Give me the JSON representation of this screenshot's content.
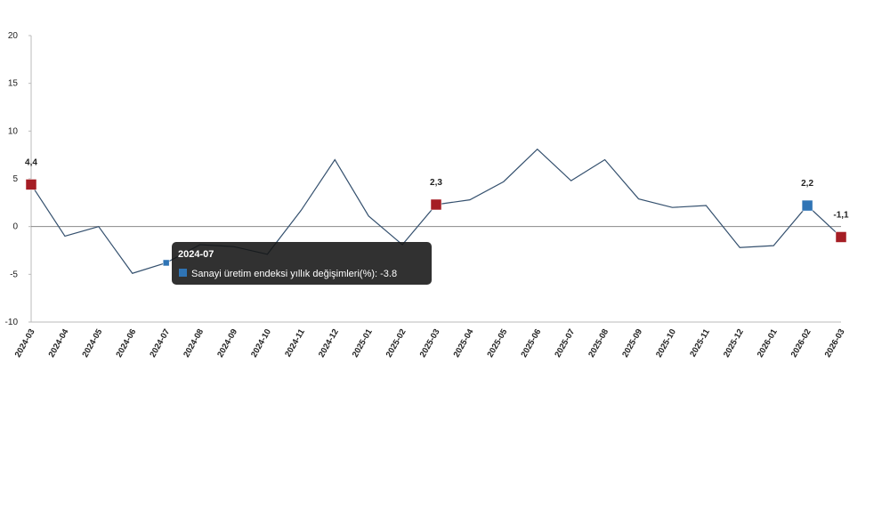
{
  "chart_data": {
    "type": "line",
    "categories": [
      "2024-03",
      "2024-04",
      "2024-05",
      "2024-06",
      "2024-07",
      "2024-08",
      "2024-09",
      "2024-10",
      "2024-11",
      "2024-12",
      "2025-01",
      "2025-02",
      "2025-03",
      "2025-04",
      "2025-05",
      "2025-06",
      "2025-07",
      "2025-08",
      "2025-09",
      "2025-10",
      "2025-11",
      "2025-12",
      "2026-01",
      "2026-02",
      "2026-03"
    ],
    "series": [
      {
        "name": "Sanayi üretim endeksi yıllık değişimleri(%)",
        "color": "#34506e",
        "values": [
          4.4,
          -1.0,
          0,
          -4.9,
          -3.8,
          -1.9,
          -2.1,
          -2.9,
          1.7,
          7.0,
          1.1,
          -1.9,
          2.3,
          2.8,
          4.7,
          8.1,
          4.8,
          7.0,
          2.9,
          2.0,
          2.2,
          -2.2,
          -2.0,
          2.2,
          -1.1
        ],
        "value_labels": [
          "4,4",
          null,
          null,
          null,
          null,
          null,
          null,
          null,
          null,
          null,
          null,
          null,
          "2,3",
          null,
          null,
          null,
          null,
          null,
          null,
          null,
          null,
          null,
          null,
          "2,2",
          "-1,1"
        ],
        "marker_colors": [
          "#a51d24",
          null,
          null,
          null,
          "#2f74b5",
          null,
          null,
          null,
          null,
          null,
          null,
          null,
          "#a51d24",
          null,
          null,
          null,
          null,
          null,
          null,
          null,
          null,
          null,
          null,
          "#2f74b5",
          "#a51d24"
        ]
      }
    ],
    "ylim": [
      -10,
      20
    ],
    "yticks": [
      -10,
      -5,
      0,
      5,
      10,
      15,
      20
    ],
    "tooltip": {
      "title": "2024-07",
      "text": "Sanayi üretim endeksi yıllık değişimleri(%): -3.8"
    }
  }
}
